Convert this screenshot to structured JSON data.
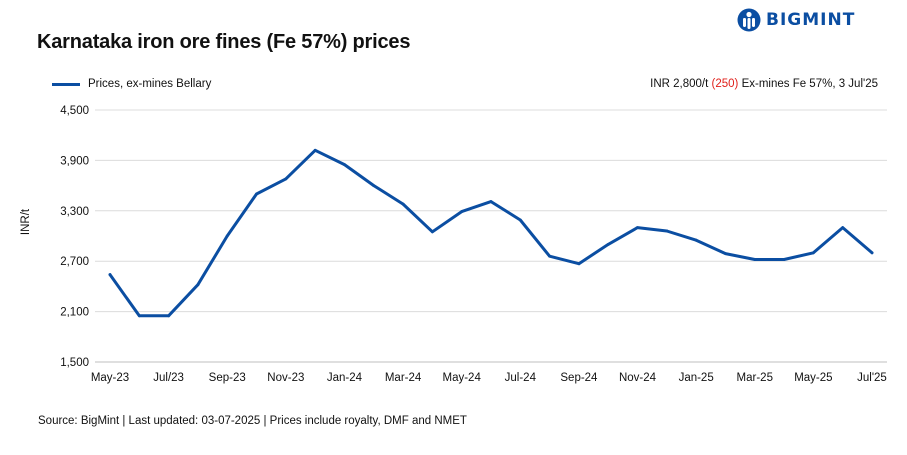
{
  "title": "Karnataka iron ore fines (Fe 57%) prices",
  "logo": {
    "text": "BIGMINT",
    "icon": "bigmint-logo-icon",
    "color": "#0b4ea2"
  },
  "legend": {
    "label": "Prices, ex-mines Bellary"
  },
  "note": {
    "prefix": "INR 2,800/t ",
    "change": "(250)",
    "suffix": " Ex-mines Fe 57%, 3 Jul'25",
    "change_color": "#e0201b"
  },
  "source": "Source: BigMint | Last updated: 03-07-2025 | Prices include royalty, DMF and NMET",
  "chart_data": {
    "type": "line",
    "ylabel": "INR/t",
    "ylim": [
      1500,
      4500
    ],
    "yticks": [
      "4,500",
      "3,900",
      "3,300",
      "2,700",
      "2,100",
      "1,500"
    ],
    "ytick_values": [
      4500,
      3900,
      3300,
      2700,
      2100,
      1500
    ],
    "xtick_labels": [
      "May-23",
      "Jul/23",
      "Sep-23",
      "Nov-23",
      "Jan-24",
      "Mar-24",
      "May-24",
      "Jul-24",
      "Sep-24",
      "Nov-24",
      "Jan-25",
      "Mar-25",
      "May-25",
      "Jul'25"
    ],
    "grid": true,
    "line_color": "#0b4ea2",
    "series": [
      {
        "name": "Prices, ex-mines Bellary",
        "values": [
          2540,
          2050,
          2050,
          2420,
          3000,
          3500,
          3680,
          4020,
          3850,
          3600,
          3380,
          3050,
          3290,
          3410,
          3190,
          2760,
          2670,
          2900,
          3100,
          3060,
          2950,
          2790,
          2720,
          2720,
          2800,
          3100,
          2800
        ]
      }
    ]
  }
}
